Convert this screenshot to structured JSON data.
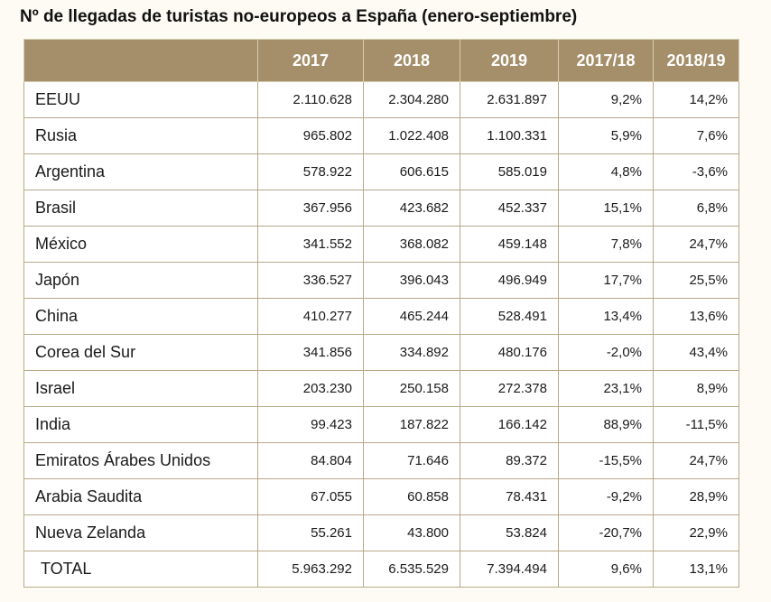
{
  "title": "Nº de llegadas de turistas no-europeos a España (enero-septiembre)",
  "colors": {
    "header_bg": "#a48f6a",
    "border": "#b8a988",
    "header_text": "#ffffff"
  },
  "chart_data": {
    "type": "table",
    "title": "Nº de llegadas de turistas no-europeos a España (enero-septiembre)",
    "columns": [
      "",
      "2017",
      "2018",
      "2019",
      "2017/18",
      "2018/19"
    ],
    "rows": [
      [
        "EEUU",
        "2.110.628",
        "2.304.280",
        "2.631.897",
        "9,2%",
        "14,2%"
      ],
      [
        "Rusia",
        "965.802",
        "1.022.408",
        "1.100.331",
        "5,9%",
        "7,6%"
      ],
      [
        "Argentina",
        "578.922",
        "606.615",
        "585.019",
        "4,8%",
        "-3,6%"
      ],
      [
        "Brasil",
        "367.956",
        "423.682",
        "452.337",
        "15,1%",
        "6,8%"
      ],
      [
        "México",
        "341.552",
        "368.082",
        "459.148",
        "7,8%",
        "24,7%"
      ],
      [
        "Japón",
        "336.527",
        "396.043",
        "496.949",
        "17,7%",
        "25,5%"
      ],
      [
        "China",
        "410.277",
        "465.244",
        "528.491",
        "13,4%",
        "13,6%"
      ],
      [
        "Corea del Sur",
        "341.856",
        "334.892",
        "480.176",
        "-2,0%",
        "43,4%"
      ],
      [
        "Israel",
        "203.230",
        "250.158",
        "272.378",
        "23,1%",
        "8,9%"
      ],
      [
        "India",
        "99.423",
        "187.822",
        "166.142",
        "88,9%",
        "-11,5%"
      ],
      [
        "Emiratos Árabes Unidos",
        "84.804",
        "71.646",
        "89.372",
        "-15,5%",
        "24,7%"
      ],
      [
        "Arabia Saudita",
        "67.055",
        "60.858",
        "78.431",
        "-9,2%",
        "28,9%"
      ],
      [
        "Nueva Zelanda",
        "55.261",
        "43.800",
        "53.824",
        "-20,7%",
        "22,9%"
      ],
      [
        "TOTAL",
        "5.963.292",
        "6.535.529",
        "7.394.494",
        "9,6%",
        "13,1%"
      ]
    ]
  }
}
